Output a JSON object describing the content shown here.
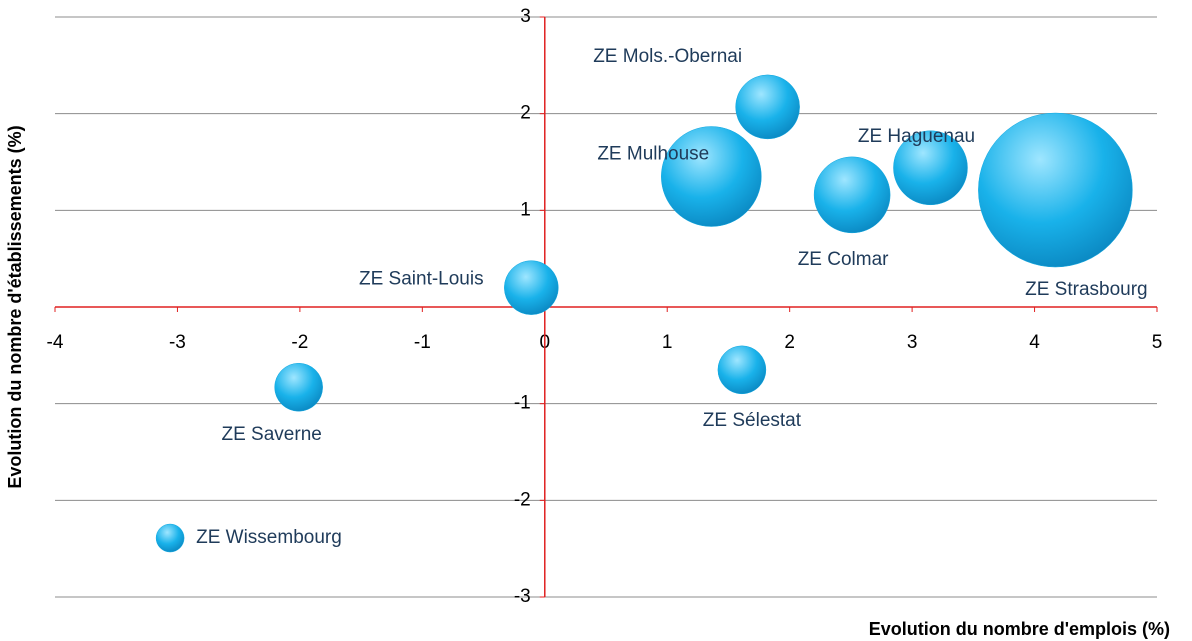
{
  "chart_data": {
    "type": "bubble",
    "xlabel": "Evolution du nombre d'emplois (%)",
    "ylabel": "Evolution du nombre d'établissements (%)",
    "xlim": [
      -4,
      5
    ],
    "xticks": [
      -4,
      -3,
      -2,
      -1,
      0,
      1,
      2,
      3,
      4,
      5
    ],
    "ylim": [
      -3,
      3
    ],
    "yticks": [
      -3,
      -2,
      -1,
      0,
      1,
      2,
      3
    ],
    "grid": true,
    "color": "#12a8e0",
    "series": [
      {
        "names": [
          "ZE Strasbourg",
          "ZE Mulhouse",
          "ZE Mols.-Obernai",
          "ZE Haguenau",
          "ZE Colmar",
          "ZE Saint-Louis",
          "ZE Sélestat",
          "ZE Saverne",
          "ZE Wissembourg"
        ],
        "x": [
          4.17,
          1.36,
          1.82,
          3.15,
          2.51,
          -0.11,
          1.61,
          -2.01,
          -3.06
        ],
        "values": [
          1.21,
          1.35,
          2.07,
          1.44,
          1.16,
          0.2,
          -0.65,
          -0.83,
          -2.39
        ],
        "sizes": [
          5929,
          2500,
          1024,
          1369,
          1444,
          729,
          576,
          576,
          196
        ]
      }
    ]
  }
}
